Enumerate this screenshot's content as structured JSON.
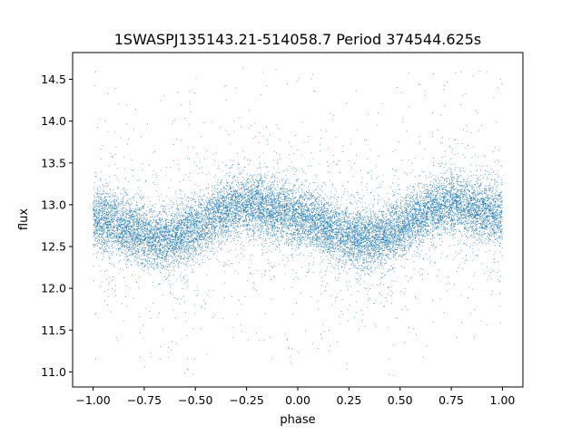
{
  "chart_data": {
    "type": "scatter",
    "title": "1SWASPJ135143.21-514058.7 Period 374544.625s",
    "xlabel": "phase",
    "ylabel": "flux",
    "xlim": [
      -1.1,
      1.1
    ],
    "ylim": [
      10.82,
      14.82
    ],
    "xticks": [
      -1.0,
      -0.75,
      -0.5,
      -0.25,
      0.0,
      0.25,
      0.5,
      0.75,
      1.0
    ],
    "xtick_labels": [
      "−1.00",
      "−0.75",
      "−0.50",
      "−0.25",
      "0.00",
      "0.25",
      "0.50",
      "0.75",
      "1.00"
    ],
    "yticks": [
      11.0,
      11.5,
      12.0,
      12.5,
      13.0,
      13.5,
      14.0,
      14.5
    ],
    "ytick_labels": [
      "11.0",
      "11.5",
      "12.0",
      "12.5",
      "13.0",
      "13.5",
      "14.0",
      "14.5"
    ],
    "grid": false,
    "marker_color": "#1f77b4",
    "series": [
      {
        "name": "",
        "phase_range": [
          -1.0,
          1.0
        ],
        "profile_phase": [
          0.0,
          0.05,
          0.1,
          0.15,
          0.2,
          0.25,
          0.3,
          0.35,
          0.4,
          0.45,
          0.5,
          0.55,
          0.6,
          0.65,
          0.7,
          0.75,
          0.8,
          0.85,
          0.9,
          0.95,
          1.0
        ],
        "profile_flux": [
          12.85,
          12.82,
          12.78,
          12.72,
          12.68,
          12.62,
          12.6,
          12.58,
          12.6,
          12.65,
          12.72,
          12.8,
          12.88,
          12.94,
          12.98,
          13.0,
          12.98,
          12.95,
          12.92,
          12.9,
          12.85
        ],
        "approx_points": 16000
      }
    ]
  }
}
